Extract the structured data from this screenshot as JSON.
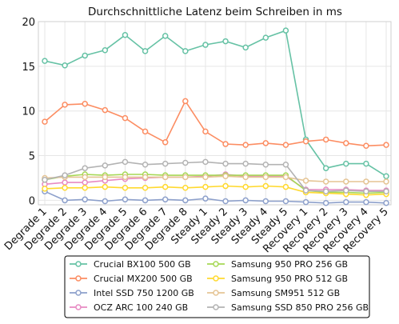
{
  "chart_data": {
    "type": "line",
    "title": "Durchschnittliche Latenz beim Schreiben in ms",
    "xlabel": "",
    "ylabel": "",
    "ylim": [
      -0.5,
      20
    ],
    "yticks": [
      0,
      5,
      10,
      15,
      20
    ],
    "grid": true,
    "legend_position": "bottom",
    "categories": [
      "Degrade 1",
      "Degrade 2",
      "Degrade 3",
      "Degrade 4",
      "Degrade 5",
      "Degrade 6",
      "Degrade 7",
      "Degrade 8",
      "Steady 1",
      "Steady 2",
      "Steady 3",
      "Steady 4",
      "Steady 5",
      "Recovery 1",
      "Recovery 2",
      "Recovery 3",
      "Recovery 4",
      "Recovery 5"
    ],
    "series": [
      {
        "name": "Crucial BX100 500 GB",
        "color": "#66c2a5",
        "values": [
          15.6,
          15.1,
          16.2,
          16.8,
          18.5,
          16.7,
          18.4,
          16.7,
          17.4,
          17.8,
          17.1,
          18.2,
          19.0,
          6.8,
          3.6,
          4.1,
          4.1,
          2.7
        ]
      },
      {
        "name": "Crucial MX200 500 GB",
        "color": "#fc8d62",
        "values": [
          8.8,
          10.7,
          10.8,
          10.1,
          9.2,
          7.7,
          6.5,
          11.1,
          7.7,
          6.3,
          6.2,
          6.4,
          6.2,
          6.6,
          6.8,
          6.4,
          6.1,
          6.2
        ]
      },
      {
        "name": "Intel SSD 750 1200 GB",
        "color": "#8da0cb",
        "values": [
          1.0,
          0.0,
          0.1,
          -0.1,
          0.1,
          0.0,
          0.1,
          0.0,
          0.2,
          -0.1,
          0.0,
          -0.1,
          -0.1,
          -0.2,
          -0.3,
          -0.2,
          -0.2,
          -0.3
        ]
      },
      {
        "name": "OCZ ARC 100 240 GB",
        "color": "#e78ac3",
        "values": [
          1.8,
          2.0,
          2.0,
          2.2,
          2.4,
          2.5,
          2.6,
          2.6,
          2.7,
          2.9,
          2.7,
          2.7,
          2.7,
          1.2,
          1.2,
          1.2,
          1.1,
          1.1
        ]
      },
      {
        "name": "Samsung 950 PRO 256 GB",
        "color": "#a6d854",
        "values": [
          2.3,
          2.7,
          2.9,
          2.8,
          2.9,
          2.9,
          2.8,
          2.8,
          2.8,
          2.8,
          2.8,
          2.8,
          2.8,
          1.1,
          0.9,
          0.9,
          0.8,
          0.9
        ]
      },
      {
        "name": "Samsung 950 PRO 512 GB",
        "color": "#ffd92f",
        "values": [
          1.3,
          1.4,
          1.4,
          1.5,
          1.4,
          1.4,
          1.5,
          1.4,
          1.5,
          1.6,
          1.5,
          1.6,
          1.5,
          0.9,
          0.8,
          0.7,
          0.6,
          0.7
        ]
      },
      {
        "name": "Samsung SM951 512 GB",
        "color": "#e5c494",
        "values": [
          2.5,
          2.6,
          2.6,
          2.6,
          2.6,
          2.6,
          2.6,
          2.6,
          2.6,
          2.7,
          2.6,
          2.6,
          2.6,
          2.2,
          2.1,
          2.1,
          2.1,
          2.1
        ]
      },
      {
        "name": "Samsung SSD 850 PRO 256 GB",
        "color": "#b3b3b3",
        "values": [
          2.3,
          2.8,
          3.6,
          3.9,
          4.3,
          4.0,
          4.1,
          4.2,
          4.3,
          4.1,
          4.1,
          4.0,
          4.0,
          1.1,
          1.0,
          1.1,
          1.0,
          1.0
        ]
      }
    ]
  }
}
